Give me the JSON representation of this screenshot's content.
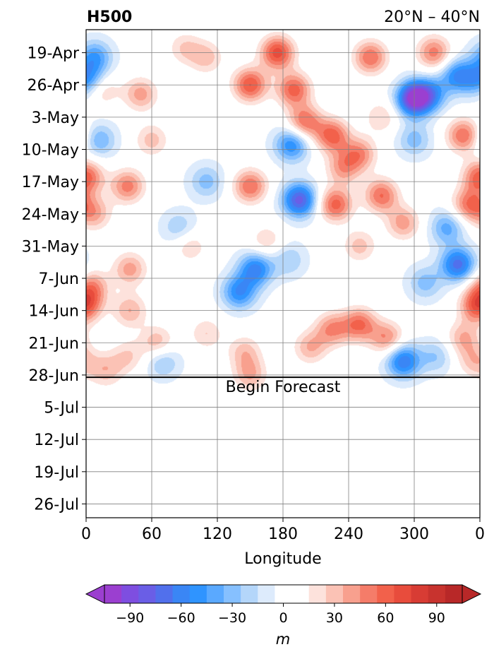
{
  "chart_data": {
    "type": "heatmap",
    "title_left": "H500",
    "title_right": "20°N – 40°N",
    "xlabel": "Longitude",
    "x_ticks": [
      "0",
      "60",
      "120",
      "180",
      "240",
      "300",
      "0"
    ],
    "x_tick_values": [
      0,
      60,
      120,
      180,
      240,
      300,
      360
    ],
    "xlim": [
      0,
      360
    ],
    "y_ticks": [
      "19-Apr",
      "26-Apr",
      "3-May",
      "10-May",
      "17-May",
      "24-May",
      "31-May",
      "7-Jun",
      "14-Jun",
      "21-Jun",
      "28-Jun",
      "5-Jul",
      "12-Jul",
      "19-Jul",
      "26-Jul"
    ],
    "y_tick_days": [
      5,
      12,
      19,
      26,
      33,
      40,
      47,
      54,
      61,
      68,
      75,
      82,
      89,
      96,
      103
    ],
    "ylim_days": [
      0,
      106
    ],
    "forecast_start_day": 75.5,
    "forecast_label": "Begin Forecast",
    "grid": true,
    "colorbar": {
      "label": "m",
      "ticks": [
        "−90",
        "−60",
        "−30",
        "0",
        "30",
        "60",
        "90"
      ],
      "tick_values": [
        -90,
        -60,
        -30,
        0,
        30,
        60,
        90
      ],
      "levels": [
        -105,
        -95,
        -85,
        -75,
        -65,
        -55,
        -45,
        -35,
        -25,
        -15,
        -5,
        5,
        15,
        25,
        35,
        45,
        55,
        65,
        75,
        85,
        95,
        105
      ],
      "colors": [
        "#9b3fd0",
        "#7e4ee0",
        "#6a5ee6",
        "#5170ec",
        "#3a86f5",
        "#2f94ff",
        "#5aa9ff",
        "#86c0ff",
        "#b4d6fa",
        "#ddebfc",
        "#ffffff",
        "#ffffff",
        "#fde2dc",
        "#fbc2b5",
        "#f8a08e",
        "#f57c69",
        "#f2614b",
        "#e84c3c",
        "#d83c34",
        "#c8332e",
        "#b82828"
      ],
      "extend": "both",
      "extend_low_color": "#9b3fd0",
      "extend_high_color": "#b82828"
    },
    "anomalies": [
      {
        "lon": 175,
        "day": 5,
        "value": 70
      },
      {
        "lon": 110,
        "day": 6,
        "value": 30
      },
      {
        "lon": 260,
        "day": 6,
        "value": 55
      },
      {
        "lon": 318,
        "day": 5,
        "value": 50
      },
      {
        "lon": 90,
        "day": 4,
        "value": 25
      },
      {
        "lon": 8,
        "day": 6,
        "value": -45
      },
      {
        "lon": 340,
        "day": 10,
        "value": -55
      },
      {
        "lon": 150,
        "day": 12,
        "value": 65
      },
      {
        "lon": 190,
        "day": 13,
        "value": 60
      },
      {
        "lon": 50,
        "day": 14,
        "value": 40
      },
      {
        "lon": 14,
        "day": 13,
        "value": 30
      },
      {
        "lon": 2,
        "day": 11,
        "value": -50
      },
      {
        "lon": 300,
        "day": 15,
        "value": -105
      },
      {
        "lon": 315,
        "day": 14,
        "value": -45
      },
      {
        "lon": 200,
        "day": 20,
        "value": 55
      },
      {
        "lon": 225,
        "day": 23,
        "value": 60
      },
      {
        "lon": 270,
        "day": 19,
        "value": 25
      },
      {
        "lon": 345,
        "day": 23,
        "value": 55
      },
      {
        "lon": 250,
        "day": 27,
        "value": 45
      },
      {
        "lon": 235,
        "day": 30,
        "value": 40
      },
      {
        "lon": 12,
        "day": 24,
        "value": -35
      },
      {
        "lon": 60,
        "day": 24,
        "value": 30
      },
      {
        "lon": 188,
        "day": 25,
        "value": -55
      },
      {
        "lon": 300,
        "day": 24,
        "value": -30
      },
      {
        "lon": 360,
        "day": 32,
        "value": 60
      },
      {
        "lon": 150,
        "day": 34,
        "value": 55
      },
      {
        "lon": 195,
        "day": 37,
        "value": -80
      },
      {
        "lon": 228,
        "day": 38,
        "value": 60
      },
      {
        "lon": 270,
        "day": 36,
        "value": 55
      },
      {
        "lon": 290,
        "day": 42,
        "value": 40
      },
      {
        "lon": 350,
        "day": 38,
        "value": 50
      },
      {
        "lon": 38,
        "day": 34,
        "value": 50
      },
      {
        "lon": 110,
        "day": 33,
        "value": -30
      },
      {
        "lon": 85,
        "day": 43,
        "value": -25
      },
      {
        "lon": 8,
        "day": 40,
        "value": 35
      },
      {
        "lon": 95,
        "day": 47,
        "value": 25
      },
      {
        "lon": 165,
        "day": 46,
        "value": 25
      },
      {
        "lon": 330,
        "day": 43,
        "value": -40
      },
      {
        "lon": 340,
        "day": 51,
        "value": -70
      },
      {
        "lon": 310,
        "day": 55,
        "value": -30
      },
      {
        "lon": 155,
        "day": 52,
        "value": -60
      },
      {
        "lon": 140,
        "day": 57,
        "value": -55
      },
      {
        "lon": 185,
        "day": 50,
        "value": -25
      },
      {
        "lon": 250,
        "day": 47,
        "value": 30
      },
      {
        "lon": 40,
        "day": 52,
        "value": 40
      },
      {
        "lon": 5,
        "day": 56,
        "value": 45
      },
      {
        "lon": 40,
        "day": 61,
        "value": 35
      },
      {
        "lon": 358,
        "day": 60,
        "value": 65
      },
      {
        "lon": 250,
        "day": 64,
        "value": 55
      },
      {
        "lon": 225,
        "day": 65,
        "value": 45
      },
      {
        "lon": 275,
        "day": 67,
        "value": 45
      },
      {
        "lon": 345,
        "day": 67,
        "value": 35
      },
      {
        "lon": 290,
        "day": 72,
        "value": -65
      },
      {
        "lon": 320,
        "day": 71,
        "value": -25
      },
      {
        "lon": 205,
        "day": 69,
        "value": 35
      },
      {
        "lon": 65,
        "day": 68,
        "value": 35
      },
      {
        "lon": 110,
        "day": 66,
        "value": 25
      },
      {
        "lon": 145,
        "day": 70,
        "value": 30
      },
      {
        "lon": 18,
        "day": 74,
        "value": 30
      },
      {
        "lon": 150,
        "day": 75,
        "value": 35
      },
      {
        "lon": 38,
        "day": 71,
        "value": 25
      },
      {
        "lon": 70,
        "day": 72,
        "value": -30
      },
      {
        "lon": 355,
        "day": 72,
        "value": 30
      },
      {
        "lon": 25,
        "day": 83,
        "value": 8
      },
      {
        "lon": 225,
        "day": 88,
        "value": 8
      },
      {
        "lon": 250,
        "day": 99,
        "value": 8
      },
      {
        "lon": 195,
        "day": 92,
        "value": 6
      }
    ]
  }
}
